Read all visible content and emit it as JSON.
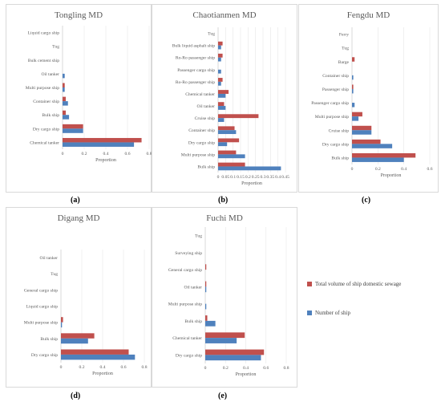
{
  "colors": {
    "sewage": "#c0504d",
    "ships": "#4f81bd",
    "grid": "#e6e6e6",
    "axis": "#bfbfbf"
  },
  "legend": {
    "sewage_label": "Total volume of ship domestic sewage",
    "ships_label": "Number of ship"
  },
  "chart_data": [
    {
      "id": "a",
      "type": "bar",
      "orientation": "horizontal",
      "title": "Tongling MD",
      "panel_label": "(a)",
      "xlabel": "Proportion",
      "xlim": [
        0,
        0.8
      ],
      "xticks": [
        "0",
        "0.2",
        "0.4",
        "0.6",
        "0.8"
      ],
      "categories": [
        "Chemical tanker",
        "Dry cargo ship",
        "Bulk ship",
        "Container ship",
        "Multi purpose ship",
        "Oil tanker",
        "Bulk cement ship",
        "Tug",
        "Liquid cargo ship"
      ],
      "series": [
        {
          "name": "Total volume of ship domestic sewage",
          "values": [
            0.73,
            0.19,
            0.03,
            0.03,
            0.02,
            0.0,
            0.0,
            0.0,
            0.0
          ]
        },
        {
          "name": "Number of ship",
          "values": [
            0.66,
            0.19,
            0.06,
            0.05,
            0.02,
            0.02,
            0.0,
            0.0,
            0.0
          ]
        }
      ]
    },
    {
      "id": "b",
      "type": "bar",
      "orientation": "horizontal",
      "title": "Chaotianmen MD",
      "panel_label": "(b)",
      "xlabel": "Proportion",
      "xlim": [
        0,
        0.45
      ],
      "xticks": [
        "0",
        "0.05",
        "0.1",
        "0.15",
        "0.2",
        "0.25",
        "0.3",
        "0.35",
        "0.4",
        "0.45"
      ],
      "categories": [
        "Bulk ship",
        "Multi purpose ship",
        "Dry cargo ship",
        "Container ship",
        "Cruise ship",
        "Oil tanker",
        "Chemical tanker",
        "Ro-Ro passenger ship",
        "Passenger cargo ship",
        "Ro-Ro passenger ship",
        "Bulk liquid asphalt ship",
        "Tug"
      ],
      "series": [
        {
          "name": "Total volume of ship domestic sewage",
          "values": [
            0.18,
            0.12,
            0.14,
            0.11,
            0.27,
            0.04,
            0.07,
            0.03,
            0.0,
            0.03,
            0.03,
            0.0
          ]
        },
        {
          "name": "Number of ship",
          "values": [
            0.42,
            0.18,
            0.06,
            0.12,
            0.04,
            0.05,
            0.05,
            0.02,
            0.02,
            0.02,
            0.02,
            0.0
          ]
        }
      ]
    },
    {
      "id": "c",
      "type": "bar",
      "orientation": "horizontal",
      "title": "Fengdu MD",
      "panel_label": "(c)",
      "xlabel": "Proportion",
      "xlim": [
        0,
        0.6
      ],
      "xticks": [
        "0",
        "0.2",
        "0.4",
        "0.6"
      ],
      "categories": [
        "Bulk ship",
        "Dry cargo ship",
        "Cruise ship",
        "Multi purpose ship",
        "Passenger cargo ship",
        "Passenger ship",
        "Container ship",
        "Barge",
        "Tug",
        "Ferry"
      ],
      "series": [
        {
          "name": "Total volume of ship domestic sewage",
          "values": [
            0.49,
            0.22,
            0.15,
            0.08,
            0.0,
            0.01,
            0.0,
            0.02,
            0.0,
            0.0
          ]
        },
        {
          "name": "Number of ship",
          "values": [
            0.4,
            0.31,
            0.15,
            0.05,
            0.02,
            0.01,
            0.01,
            0.0,
            0.0,
            0.0
          ]
        }
      ]
    },
    {
      "id": "d",
      "type": "bar",
      "orientation": "horizontal",
      "title": "Digang MD",
      "panel_label": "(d)",
      "xlabel": "Proportion",
      "xlim": [
        0,
        0.8
      ],
      "xticks": [
        "0",
        "0.2",
        "0.4",
        "0.6",
        "0.8"
      ],
      "categories": [
        "Dry cargo ship",
        "Bulk ship",
        "Multi purpose ship",
        "Liquid cargo ship",
        "General cargo ship",
        "Tug",
        "Oil tanker"
      ],
      "series": [
        {
          "name": "Total volume of ship domestic sewage",
          "values": [
            0.65,
            0.32,
            0.02,
            0.0,
            0.0,
            0.0,
            0.0
          ]
        },
        {
          "name": "Number of ship",
          "values": [
            0.71,
            0.26,
            0.01,
            0.0,
            0.0,
            0.0,
            0.0
          ]
        }
      ]
    },
    {
      "id": "e",
      "type": "bar",
      "orientation": "horizontal",
      "title": "Fuchi MD",
      "panel_label": "(e)",
      "xlabel": "Proportion",
      "xlim": [
        0,
        0.8
      ],
      "xticks": [
        "0",
        "0.2",
        "0.4",
        "0.6",
        "0.8"
      ],
      "categories": [
        "Dry cargo ship",
        "Chemical tanker",
        "Bulk ship",
        "Multi purpose ship",
        "Oil tanker",
        "General cargo ship",
        "Surveying ship",
        "Tug"
      ],
      "series": [
        {
          "name": "Total volume of ship domestic sewage",
          "values": [
            0.58,
            0.39,
            0.02,
            0.0,
            0.01,
            0.01,
            0.0,
            0.0
          ]
        },
        {
          "name": "Number of ship",
          "values": [
            0.55,
            0.31,
            0.1,
            0.01,
            0.01,
            0.0,
            0.0,
            0.0
          ]
        }
      ]
    }
  ]
}
